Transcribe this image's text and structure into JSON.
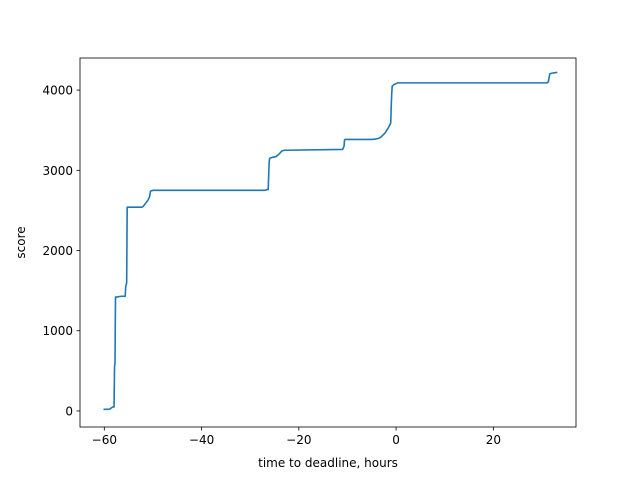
{
  "chart_data": {
    "type": "line",
    "title": "",
    "xlabel": "time to deadline, hours",
    "ylabel": "score",
    "xlim": [
      -65,
      37
    ],
    "ylim": [
      -200,
      4400
    ],
    "xticks": [
      -60,
      -40,
      -20,
      0,
      20
    ],
    "yticks": [
      0,
      1000,
      2000,
      3000,
      4000
    ],
    "xtick_labels": [
      "−60",
      "−40",
      "−20",
      "0",
      "20"
    ],
    "ytick_labels": [
      "0",
      "1000",
      "2000",
      "3000",
      "4000"
    ],
    "grid": false,
    "legend": "none",
    "series": [
      {
        "color": "#1f77b4",
        "x": [
          -60,
          -59,
          -58.7,
          -58.3,
          -58,
          -57.9,
          -57.8,
          -57.7,
          -57.5,
          -56.5,
          -55.7,
          -55.6,
          -55.4,
          -55.3,
          -55.2,
          -52.3,
          -52,
          -51.5,
          -51,
          -50.7,
          -50.5,
          -50,
          -27,
          -26.5,
          -26.3,
          -26.1,
          -26,
          -25.5,
          -24.7,
          -24.1,
          -23.5,
          -23,
          -11,
          -10.7,
          -10.6,
          -10.5,
          -5,
          -4.2,
          -3.5,
          -3,
          -2.2,
          -1.5,
          -1.1,
          -1,
          -0.9,
          -0.8,
          -0.4,
          0,
          0.3,
          1,
          31,
          31.3,
          31.6,
          32,
          33
        ],
        "y": [
          20,
          20,
          30,
          50,
          50,
          550,
          600,
          1420,
          1420,
          1430,
          1430,
          1550,
          1600,
          2540,
          2540,
          2540,
          2550,
          2590,
          2630,
          2670,
          2740,
          2750,
          2750,
          2760,
          2760,
          3100,
          3150,
          3160,
          3170,
          3200,
          3240,
          3250,
          3260,
          3300,
          3380,
          3385,
          3385,
          3390,
          3400,
          3420,
          3470,
          3540,
          3590,
          3800,
          3950,
          4050,
          4070,
          4080,
          4090,
          4090,
          4090,
          4100,
          4200,
          4210,
          4220
        ]
      }
    ]
  }
}
